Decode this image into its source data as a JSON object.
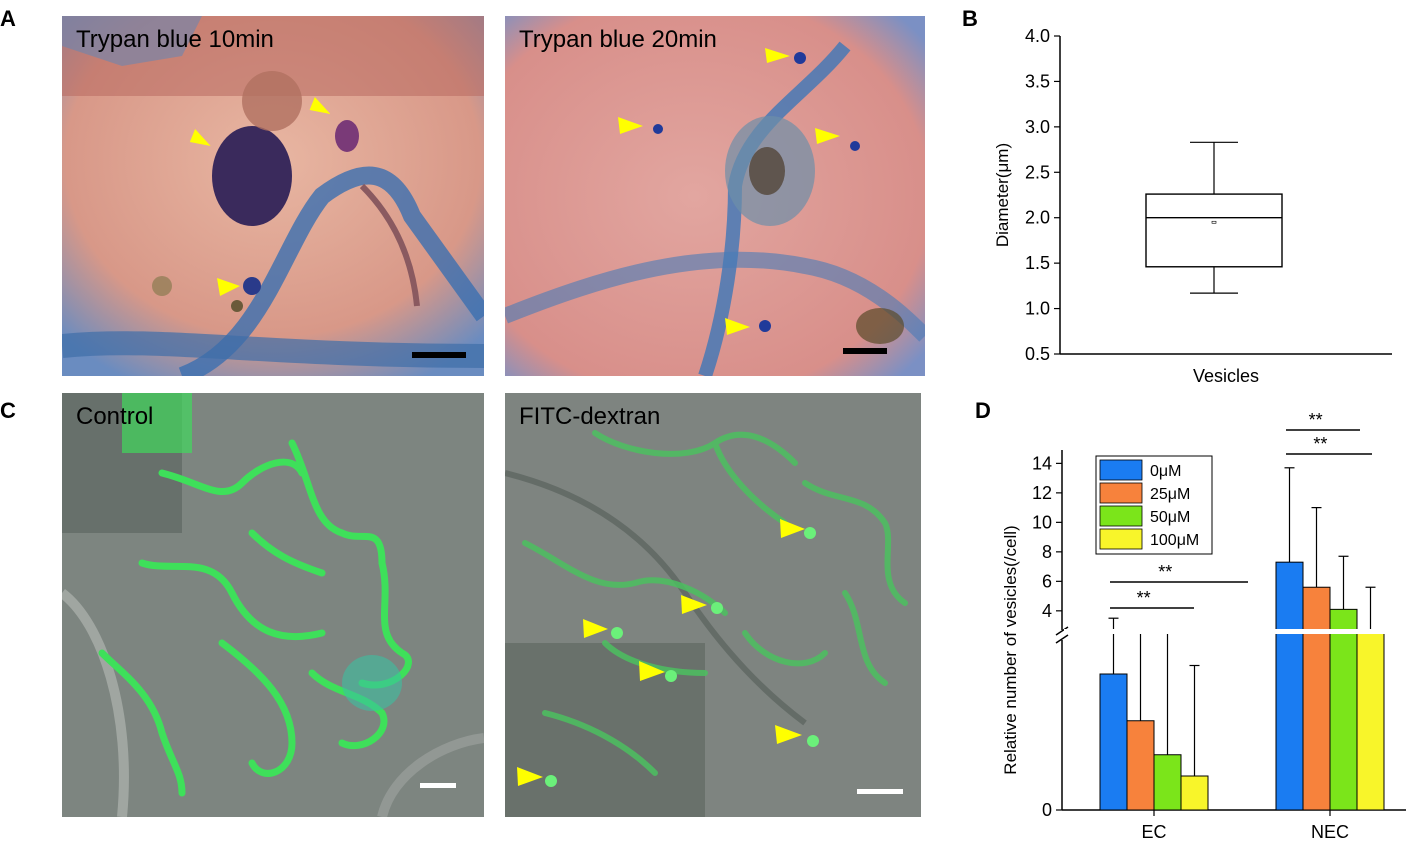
{
  "panel_labels": {
    "a": "A",
    "b": "B",
    "c": "C",
    "d": "D"
  },
  "panel_a": {
    "left_caption": "Trypan blue 10min",
    "right_caption": "Trypan blue 20min"
  },
  "panel_c": {
    "left_caption": "Control",
    "right_caption": "FITC-dextran"
  },
  "colors": {
    "series_0uM": "#1a7cf2",
    "series_25uM": "#f7823c",
    "series_50uM": "#7be51a",
    "series_100uM": "#f8f52a",
    "arrow": "#ffff00",
    "fluorescence": "#3ee05a"
  },
  "chart_data": [
    {
      "type": "box",
      "panel": "B",
      "ylabel": "Diameter(μm)",
      "xlabel": "Vesicles",
      "ylim": [
        0.5,
        4.0
      ],
      "yticks": [
        "0.5",
        "1.0",
        "1.5",
        "2.0",
        "2.5",
        "3.0",
        "3.5",
        "4.0"
      ],
      "categories": [
        "Vesicles"
      ],
      "box": {
        "whisker_low": 1.17,
        "q1": 1.46,
        "median": 2.0,
        "mean": 1.95,
        "q3": 2.26,
        "whisker_high": 2.83
      }
    },
    {
      "type": "bar",
      "panel": "D",
      "ylabel": "Relative number of vesicles(/cell)",
      "categories": [
        "EC",
        "NEC"
      ],
      "axis_break": true,
      "yticks": [
        "0",
        "4",
        "6",
        "8",
        "10",
        "12",
        "14"
      ],
      "series": [
        {
          "name": "0μM",
          "values": [
            1.6,
            7.3
          ],
          "errors": [
            1.9,
            6.4
          ]
        },
        {
          "name": "25μM",
          "values": [
            1.05,
            5.6
          ],
          "errors": [
            1.2,
            5.4
          ]
        },
        {
          "name": "50μM",
          "values": [
            0.65,
            4.1
          ],
          "errors": [
            1.45,
            3.6
          ]
        },
        {
          "name": "100μM",
          "values": [
            0.4,
            2.7
          ],
          "errors": [
            1.3,
            2.9
          ]
        }
      ],
      "annotations": [
        "**",
        "**",
        "**",
        "**"
      ]
    }
  ]
}
